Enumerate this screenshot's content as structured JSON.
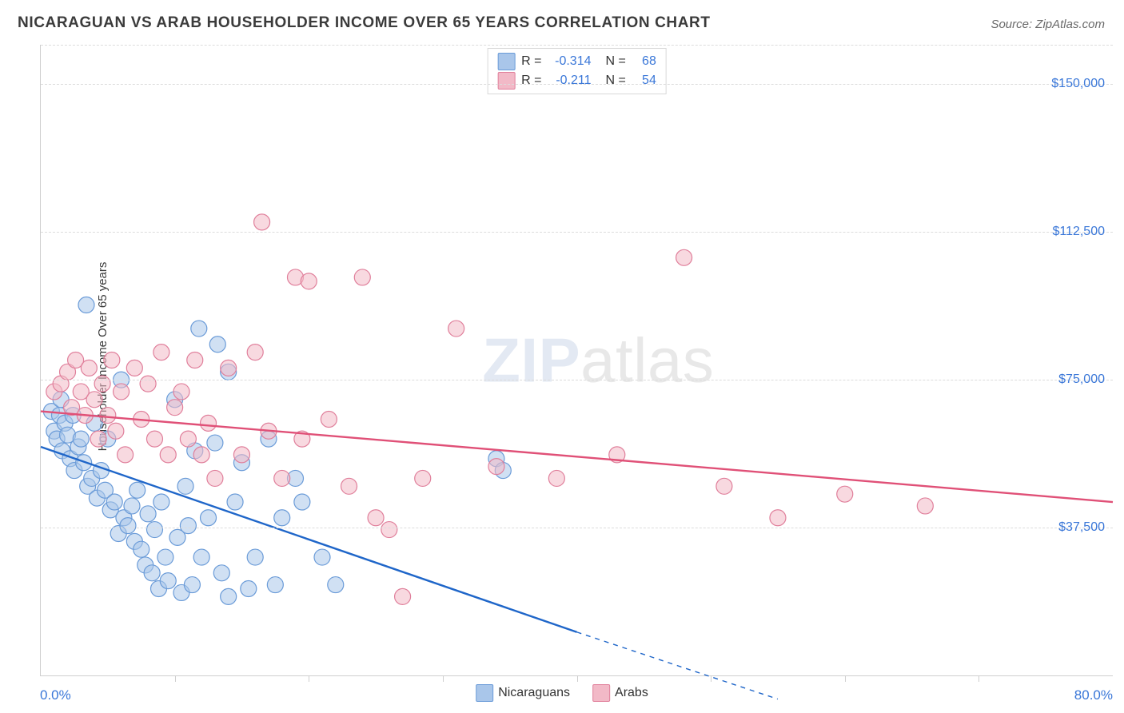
{
  "title": "NICARAGUAN VS ARAB HOUSEHOLDER INCOME OVER 65 YEARS CORRELATION CHART",
  "source": "Source: ZipAtlas.com",
  "ylabel": "Householder Income Over 65 years",
  "watermark_zip": "ZIP",
  "watermark_atlas": "atlas",
  "chart": {
    "type": "scatter",
    "xlim": [
      0,
      80
    ],
    "ylim": [
      0,
      160000
    ],
    "xtick_positions": [
      0,
      10,
      20,
      30,
      40,
      50,
      60,
      70,
      80
    ],
    "x_axis_labels": {
      "left": "0.0%",
      "right": "80.0%"
    },
    "ytick_positions": [
      37500,
      75000,
      112500,
      150000
    ],
    "ytick_labels": [
      "$37,500",
      "$75,000",
      "$112,500",
      "$150,000"
    ],
    "grid_top_at_y": 160000,
    "grid_color": "#dcdcdc",
    "axis_color": "#cfcfcf",
    "bg_color": "#ffffff",
    "marker_radius": 10,
    "marker_opacity": 0.55,
    "series": [
      {
        "name": "Nicaraguans",
        "fill": "#a9c6ea",
        "stroke": "#6a9bd8",
        "line_color": "#1f66c9",
        "line_width": 2.4,
        "regression": {
          "x1": 0,
          "y1": 58000,
          "x2": 40,
          "y2": 11000,
          "dash_after_x": 40,
          "x3": 55,
          "y3": -6000
        },
        "legend_top": {
          "R": "-0.314",
          "N": "68"
        },
        "points": [
          [
            0.8,
            67000
          ],
          [
            1.0,
            62000
          ],
          [
            1.2,
            60000
          ],
          [
            1.4,
            66000
          ],
          [
            1.5,
            70000
          ],
          [
            1.6,
            57000
          ],
          [
            1.8,
            64000
          ],
          [
            2.0,
            61000
          ],
          [
            2.2,
            55000
          ],
          [
            2.4,
            66000
          ],
          [
            2.5,
            52000
          ],
          [
            2.8,
            58000
          ],
          [
            3.0,
            60000
          ],
          [
            3.2,
            54000
          ],
          [
            3.4,
            94000
          ],
          [
            3.5,
            48000
          ],
          [
            3.8,
            50000
          ],
          [
            4.0,
            64000
          ],
          [
            4.2,
            45000
          ],
          [
            4.5,
            52000
          ],
          [
            4.8,
            47000
          ],
          [
            5.0,
            60000
          ],
          [
            5.2,
            42000
          ],
          [
            5.5,
            44000
          ],
          [
            5.8,
            36000
          ],
          [
            6.0,
            75000
          ],
          [
            6.2,
            40000
          ],
          [
            6.5,
            38000
          ],
          [
            6.8,
            43000
          ],
          [
            7.0,
            34000
          ],
          [
            7.2,
            47000
          ],
          [
            7.5,
            32000
          ],
          [
            7.8,
            28000
          ],
          [
            8.0,
            41000
          ],
          [
            8.3,
            26000
          ],
          [
            8.5,
            37000
          ],
          [
            8.8,
            22000
          ],
          [
            9.0,
            44000
          ],
          [
            9.3,
            30000
          ],
          [
            9.5,
            24000
          ],
          [
            10.0,
            70000
          ],
          [
            10.2,
            35000
          ],
          [
            10.5,
            21000
          ],
          [
            11.0,
            38000
          ],
          [
            11.3,
            23000
          ],
          [
            11.5,
            57000
          ],
          [
            11.8,
            88000
          ],
          [
            12.0,
            30000
          ],
          [
            12.5,
            40000
          ],
          [
            13.0,
            59000
          ],
          [
            13.2,
            84000
          ],
          [
            13.5,
            26000
          ],
          [
            14.0,
            20000
          ],
          [
            14.5,
            44000
          ],
          [
            15.0,
            54000
          ],
          [
            15.5,
            22000
          ],
          [
            16.0,
            30000
          ],
          [
            17.0,
            60000
          ],
          [
            17.5,
            23000
          ],
          [
            18.0,
            40000
          ],
          [
            19.0,
            50000
          ],
          [
            19.5,
            44000
          ],
          [
            21.0,
            30000
          ],
          [
            22.0,
            23000
          ],
          [
            34.0,
            55000
          ],
          [
            34.5,
            52000
          ],
          [
            14.0,
            77000
          ],
          [
            10.8,
            48000
          ]
        ]
      },
      {
        "name": "Arabs",
        "fill": "#f2b9c7",
        "stroke": "#e07f9b",
        "line_color": "#e05077",
        "line_width": 2.4,
        "regression": {
          "x1": 0,
          "y1": 67000,
          "x2": 80,
          "y2": 44000
        },
        "legend_top": {
          "R": "-0.211",
          "N": "54"
        },
        "points": [
          [
            1.0,
            72000
          ],
          [
            1.5,
            74000
          ],
          [
            2.0,
            77000
          ],
          [
            2.3,
            68000
          ],
          [
            2.6,
            80000
          ],
          [
            3.0,
            72000
          ],
          [
            3.3,
            66000
          ],
          [
            3.6,
            78000
          ],
          [
            4.0,
            70000
          ],
          [
            4.3,
            60000
          ],
          [
            4.6,
            74000
          ],
          [
            5.0,
            66000
          ],
          [
            5.3,
            80000
          ],
          [
            5.6,
            62000
          ],
          [
            6.0,
            72000
          ],
          [
            6.3,
            56000
          ],
          [
            7.0,
            78000
          ],
          [
            7.5,
            65000
          ],
          [
            8.0,
            74000
          ],
          [
            8.5,
            60000
          ],
          [
            9.0,
            82000
          ],
          [
            9.5,
            56000
          ],
          [
            10.0,
            68000
          ],
          [
            10.5,
            72000
          ],
          [
            11.0,
            60000
          ],
          [
            11.5,
            80000
          ],
          [
            12.0,
            56000
          ],
          [
            12.5,
            64000
          ],
          [
            13.0,
            50000
          ],
          [
            14.0,
            78000
          ],
          [
            15.0,
            56000
          ],
          [
            16.0,
            82000
          ],
          [
            16.5,
            115000
          ],
          [
            17.0,
            62000
          ],
          [
            18.0,
            50000
          ],
          [
            19.0,
            101000
          ],
          [
            19.5,
            60000
          ],
          [
            20.0,
            100000
          ],
          [
            21.5,
            65000
          ],
          [
            23.0,
            48000
          ],
          [
            24.0,
            101000
          ],
          [
            25.0,
            40000
          ],
          [
            26.0,
            37000
          ],
          [
            27.0,
            20000
          ],
          [
            28.5,
            50000
          ],
          [
            31.0,
            88000
          ],
          [
            34.0,
            53000
          ],
          [
            38.5,
            50000
          ],
          [
            43.0,
            56000
          ],
          [
            48.0,
            106000
          ],
          [
            51.0,
            48000
          ],
          [
            55.0,
            40000
          ],
          [
            60.0,
            46000
          ],
          [
            66.0,
            43000
          ]
        ]
      }
    ]
  },
  "legend_bottom": [
    {
      "label": "Nicaraguans",
      "fill": "#a9c6ea",
      "stroke": "#6a9bd8"
    },
    {
      "label": "Arabs",
      "fill": "#f2b9c7",
      "stroke": "#e07f9b"
    }
  ]
}
